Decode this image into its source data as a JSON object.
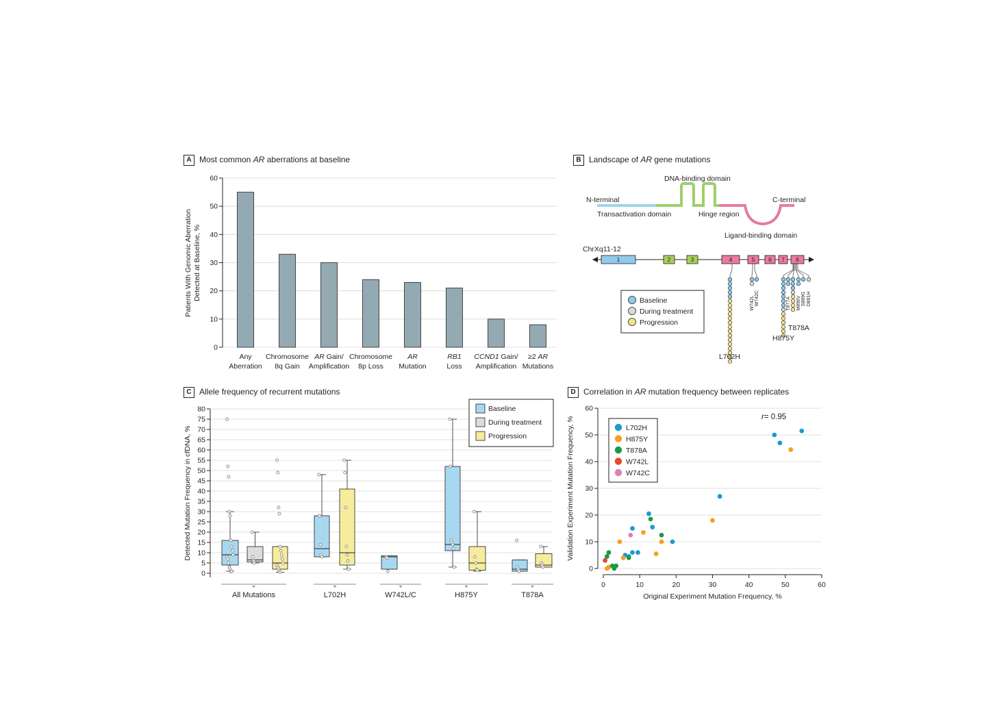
{
  "panels": {
    "A": {
      "letter": "A",
      "title_pre": "Most common ",
      "title_em": "AR",
      "title_post": " aberrations at baseline"
    },
    "B": {
      "letter": "B",
      "title_pre": "Landscape of ",
      "title_em": "AR",
      "title_post": " gene mutations"
    },
    "C": {
      "letter": "C",
      "title": "Allele frequency of recurrent mutations"
    },
    "D": {
      "letter": "D",
      "title_pre": "Correlation in ",
      "title_em": "AR",
      "title_post": " mutation frequency between replicates"
    }
  },
  "diagram_b": {
    "domain_labels": {
      "n_terminal": "N-terminal",
      "c_terminal": "C-terminal",
      "transactivation": "Transactivation domain",
      "dna_binding": "DNA-binding domain",
      "hinge": "Hinge region",
      "ligand_binding": "Ligand-binding domain"
    },
    "chromosome": "ChrXq11-12",
    "exons": [
      "1",
      "2",
      "3",
      "4",
      "5",
      "6",
      "7",
      "8"
    ],
    "colors": {
      "transactivation": "#9fd3ec",
      "dna_binding": "#9ed06a",
      "hinge_lbd": "#e67aa2",
      "exon1": "#8fcbea",
      "exon23": "#a6cf58",
      "exon4_8": "#e97a9d"
    },
    "legend": [
      {
        "label": "Baseline",
        "color": "#8fcbea"
      },
      {
        "label": "During treatment",
        "color": "#d9d9d9"
      },
      {
        "label": "Progression",
        "color": "#f1e48b"
      }
    ],
    "mutations": [
      {
        "label": "L702H",
        "baseline": 5,
        "during": 0,
        "progression": 15
      },
      {
        "label": "W742L",
        "baseline": 1,
        "during": 1,
        "progression": 0
      },
      {
        "label": "W742C",
        "baseline": 1,
        "during": 0,
        "progression": 0
      },
      {
        "label": "H875Y",
        "baseline": 7,
        "during": 1,
        "progression": 6
      },
      {
        "label": "T877A",
        "baseline": 2,
        "during": 0,
        "progression": 0
      },
      {
        "label": "T878A",
        "baseline": 3,
        "during": 1,
        "progression": 4
      },
      {
        "label": "M896V",
        "baseline": 2,
        "during": 0,
        "progression": 0
      },
      {
        "label": "S889G",
        "baseline": 1,
        "during": 0,
        "progression": 0
      },
      {
        "label": "D891H",
        "baseline": 0,
        "during": 1,
        "progression": 0
      }
    ],
    "labeled_mutations": [
      "L702H",
      "T878A",
      "H875Y"
    ]
  },
  "chart_data": [
    {
      "type": "bar",
      "panel": "A",
      "ylabel_lines": [
        "Patients With Genomic Aberration",
        "Detected at Baseline, %"
      ],
      "ylim": [
        0,
        60
      ],
      "yticks": [
        0,
        10,
        20,
        30,
        40,
        50,
        60
      ],
      "grid": true,
      "bar_color": "#94aab3",
      "categories": [
        {
          "l1": "Any",
          "l1i": "",
          "l2": "Aberration"
        },
        {
          "l1": "Chromosome",
          "l1i": "",
          "l2": "8q Gain"
        },
        {
          "l1": " Gain/",
          "l1i": "AR",
          "l2": "Amplification"
        },
        {
          "l1": "Chromosome",
          "l1i": "",
          "l2": "8p Loss"
        },
        {
          "l1": "",
          "l1i": "AR",
          "l2": "Mutation"
        },
        {
          "l1": "",
          "l1i": "RB1",
          "l2": "Loss"
        },
        {
          "l1": " Gain/",
          "l1i": "CCND1",
          "l2": "Amplification"
        },
        {
          "l1": "≥2 ",
          "l1i": "AR",
          "l2": "Mutations"
        }
      ],
      "values": [
        55,
        33,
        30,
        24,
        23,
        21,
        10,
        8
      ]
    },
    {
      "type": "box",
      "panel": "C",
      "ylabel": "Detected Mutation Frequency in cfDNA, %",
      "ylim": [
        0,
        80
      ],
      "yticks": [
        0,
        5,
        10,
        15,
        20,
        25,
        30,
        35,
        40,
        45,
        50,
        55,
        60,
        65,
        70,
        75,
        80
      ],
      "grid": true,
      "legend_position": "top-right",
      "legend": [
        {
          "name": "Baseline",
          "color": "#a8d8f0"
        },
        {
          "name": "During treatment",
          "color": "#dcdcdc"
        },
        {
          "name": "Progression",
          "color": "#f6ec9c"
        }
      ],
      "groups": [
        {
          "label": "All Mutations",
          "boxes": [
            {
              "series": 0,
              "min": 1,
              "q1": 4,
              "median": 9,
              "q3": 16,
              "max": 30,
              "points": [
                75,
                52,
                47,
                30,
                28,
                16,
                13,
                11,
                9,
                8,
                7,
                5,
                3,
                2,
                1,
                1
              ]
            },
            {
              "series": 1,
              "min": 5,
              "q1": 5.5,
              "median": 6.5,
              "q3": 13,
              "max": 20,
              "points": [
                20,
                8,
                6,
                5
              ]
            },
            {
              "series": 2,
              "min": 0.5,
              "q1": 2,
              "median": 5,
              "q3": 13,
              "max": 13,
              "points": [
                55,
                49,
                32,
                29,
                13,
                11,
                9,
                7,
                5,
                4,
                3,
                2,
                1,
                0.5
              ]
            }
          ]
        },
        {
          "label": "L702H",
          "boxes": [
            {
              "series": 0,
              "min": 8,
              "q1": 8,
              "median": 12,
              "q3": 28,
              "max": 48,
              "points": [
                48,
                28,
                14,
                9,
                8
              ]
            },
            {
              "series": 2,
              "min": 2,
              "q1": 4,
              "median": 10,
              "q3": 41,
              "max": 55,
              "points": [
                55,
                49,
                32,
                13,
                9,
                6,
                2
              ]
            }
          ]
        },
        {
          "label": "W742L/C",
          "boxes": [
            {
              "series": 0,
              "min": 2,
              "q1": 2,
              "median": 8,
              "q3": 8.5,
              "max": 8.5,
              "points": [
                8,
                7.5,
                1
              ]
            }
          ]
        },
        {
          "label": "H875Y",
          "boxes": [
            {
              "series": 0,
              "min": 3,
              "q1": 11,
              "median": 14,
              "q3": 52,
              "max": 75,
              "points": [
                75,
                52,
                16,
                15,
                14,
                12,
                3
              ]
            },
            {
              "series": 2,
              "min": 1,
              "q1": 1.5,
              "median": 5,
              "q3": 13,
              "max": 30,
              "points": [
                30,
                8,
                5,
                2,
                1.5
              ]
            }
          ]
        },
        {
          "label": "T878A",
          "boxes": [
            {
              "series": 0,
              "min": 1,
              "q1": 1,
              "median": 2,
              "q3": 6.5,
              "max": 6.5,
              "points": [
                16,
                3,
                2,
                1
              ]
            },
            {
              "series": 2,
              "min": 3,
              "q1": 3,
              "median": 4,
              "q3": 9.5,
              "max": 13,
              "points": [
                13,
                5,
                4,
                3
              ]
            }
          ]
        }
      ]
    },
    {
      "type": "scatter",
      "panel": "D",
      "xlabel": "Original Experiment Mutation Frequency, %",
      "ylabel": "Validation Experiment Mutation Frequency, %",
      "xlim": [
        0,
        60
      ],
      "ylim": [
        0,
        60
      ],
      "xticks": [
        0,
        10,
        20,
        30,
        40,
        50,
        60
      ],
      "yticks": [
        0,
        10,
        20,
        30,
        40,
        50,
        60
      ],
      "grid": true,
      "legend_position": "top-left",
      "annotation_r": "r",
      "annotation_val": "= 0.95",
      "series": [
        {
          "name": "L702H",
          "color": "#1c9bd1",
          "points": [
            [
              47,
              50
            ],
            [
              48.5,
              47
            ],
            [
              54.5,
              51.5
            ],
            [
              32,
              27
            ],
            [
              19,
              10
            ],
            [
              12.5,
              20.5
            ],
            [
              13.5,
              15.5
            ],
            [
              8,
              15
            ],
            [
              9.5,
              6
            ],
            [
              8,
              6
            ],
            [
              6,
              5
            ],
            [
              5.5,
              4
            ],
            [
              7,
              4.5
            ]
          ]
        },
        {
          "name": "H875Y",
          "color": "#f4a11f",
          "points": [
            [
              51.5,
              44.5
            ],
            [
              30,
              18
            ],
            [
              16,
              10
            ],
            [
              11,
              13.5
            ],
            [
              14.5,
              5.5
            ],
            [
              4.5,
              10
            ],
            [
              5.5,
              4
            ],
            [
              1,
              0
            ],
            [
              1.5,
              0.5
            ]
          ]
        },
        {
          "name": "T878A",
          "color": "#1a9a46",
          "points": [
            [
              13,
              18.5
            ],
            [
              16,
              12.5
            ],
            [
              1.5,
              6
            ],
            [
              1,
              4.5
            ],
            [
              2.5,
              1
            ],
            [
              3,
              0
            ],
            [
              3.5,
              1
            ],
            [
              7,
              4
            ]
          ]
        },
        {
          "name": "W742L",
          "color": "#e8472b",
          "points": [
            [
              0.5,
              3
            ]
          ]
        },
        {
          "name": "W742C",
          "color": "#de7fb6",
          "points": [
            [
              7.5,
              12.5
            ]
          ]
        }
      ]
    }
  ]
}
